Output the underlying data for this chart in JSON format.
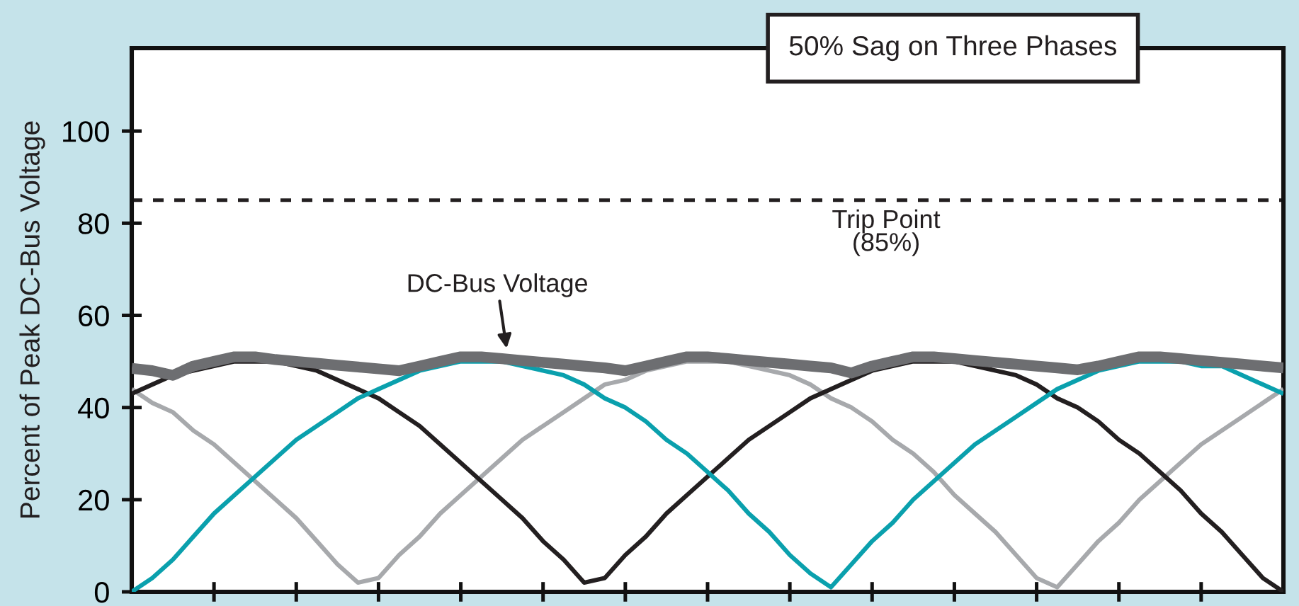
{
  "chart_data": {
    "type": "line",
    "title": "50% Sag on Three Phases",
    "ylabel": "Percent of Peak DC-Bus Voltage",
    "categories": [
      null,
      null,
      null,
      null,
      null,
      null,
      null,
      null,
      null,
      null,
      null,
      null,
      null,
      null,
      null,
      null,
      null,
      null,
      null,
      null,
      null,
      null,
      null,
      null,
      null,
      null,
      null,
      null,
      null,
      null,
      null,
      null,
      null,
      null,
      null,
      null,
      null,
      null,
      null,
      null,
      null,
      null,
      null,
      null,
      null,
      null,
      null,
      null,
      null,
      null,
      null,
      null,
      null,
      null,
      null,
      null,
      null
    ],
    "ylim": [
      0,
      118
    ],
    "yticks": [
      0,
      20,
      40,
      60,
      80,
      100
    ],
    "grid": false,
    "line_style": "solid",
    "ref_lines": [
      {
        "axis": "y",
        "value": 85,
        "label": "Trip Point\n(85%)",
        "color": "#231f20",
        "line_style": "dashed"
      }
    ],
    "series": [
      {
        "color": "#a7a9ac",
        "values": [
          44,
          41,
          39,
          35,
          32,
          28,
          24,
          20,
          16,
          11,
          6,
          2,
          3,
          8,
          12,
          17,
          21,
          25,
          29,
          33,
          36,
          39,
          42,
          45,
          46,
          48,
          49,
          50,
          50,
          50,
          49,
          48,
          47,
          45,
          42,
          40,
          37,
          33,
          30,
          26,
          21,
          17,
          13,
          8,
          3,
          1,
          6,
          11,
          15,
          20,
          24,
          28,
          32,
          35,
          38,
          41,
          44
        ]
      },
      {
        "color": "#231f20",
        "values": [
          43,
          45,
          47,
          48,
          49,
          50,
          50,
          50,
          49,
          48,
          46,
          44,
          42,
          39,
          36,
          32,
          28,
          24,
          20,
          16,
          11,
          7,
          2,
          3,
          8,
          12,
          17,
          21,
          25,
          29,
          33,
          36,
          39,
          42,
          44,
          46,
          48,
          49,
          50,
          50,
          50,
          49,
          48,
          47,
          45,
          42,
          40,
          37,
          33,
          30,
          26,
          22,
          17,
          13,
          8,
          3,
          0
        ]
      },
      {
        "color": "#0aa0ad",
        "values": [
          0,
          3,
          7,
          12,
          17,
          21,
          25,
          29,
          33,
          36,
          39,
          42,
          44,
          46,
          48,
          49,
          50,
          50,
          50,
          49,
          48,
          47,
          45,
          42,
          40,
          37,
          33,
          30,
          26,
          22,
          17,
          13,
          8,
          4,
          1,
          6,
          11,
          15,
          20,
          24,
          28,
          32,
          35,
          38,
          41,
          44,
          46,
          48,
          49,
          50,
          50,
          50,
          49,
          49,
          47,
          45,
          43
        ]
      },
      {
        "name": "DC-Bus Voltage",
        "color": "#6d6e71",
        "values": [
          48.5,
          48,
          47,
          49,
          50,
          51,
          51,
          50.4,
          50,
          49.6,
          49.2,
          48.8,
          48.4,
          48,
          49,
          50,
          51,
          51,
          50.6,
          50.2,
          49.8,
          49.4,
          49,
          48.6,
          48,
          49,
          50,
          51,
          51,
          50.6,
          50.2,
          49.8,
          49.4,
          49,
          48.6,
          47.5,
          49,
          50,
          51,
          51,
          50.6,
          50.2,
          49.8,
          49.4,
          49,
          48.6,
          48.2,
          49,
          50,
          51,
          51,
          50.6,
          50.2,
          49.8,
          49.4,
          49,
          48.6
        ]
      }
    ]
  }
}
